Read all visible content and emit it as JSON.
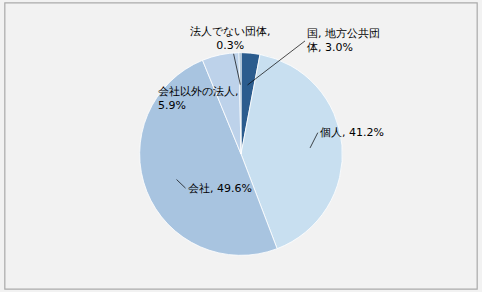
{
  "chart_data": {
    "type": "pie",
    "categories": [
      "国, 地方公共団\n体, 3.0%",
      "個人, 41.2%",
      "会社, 49.6%",
      "会社以外の法人,\n5.9%",
      "法人でない団体,\n0.3%"
    ],
    "values": [
      3.0,
      41.2,
      49.6,
      5.9,
      0.3
    ],
    "colors": [
      "#2B5C8E",
      "#C8DFF0",
      "#A8C4E0",
      "#BDD2EA",
      "#80A8C8"
    ],
    "data_labels": true
  }
}
